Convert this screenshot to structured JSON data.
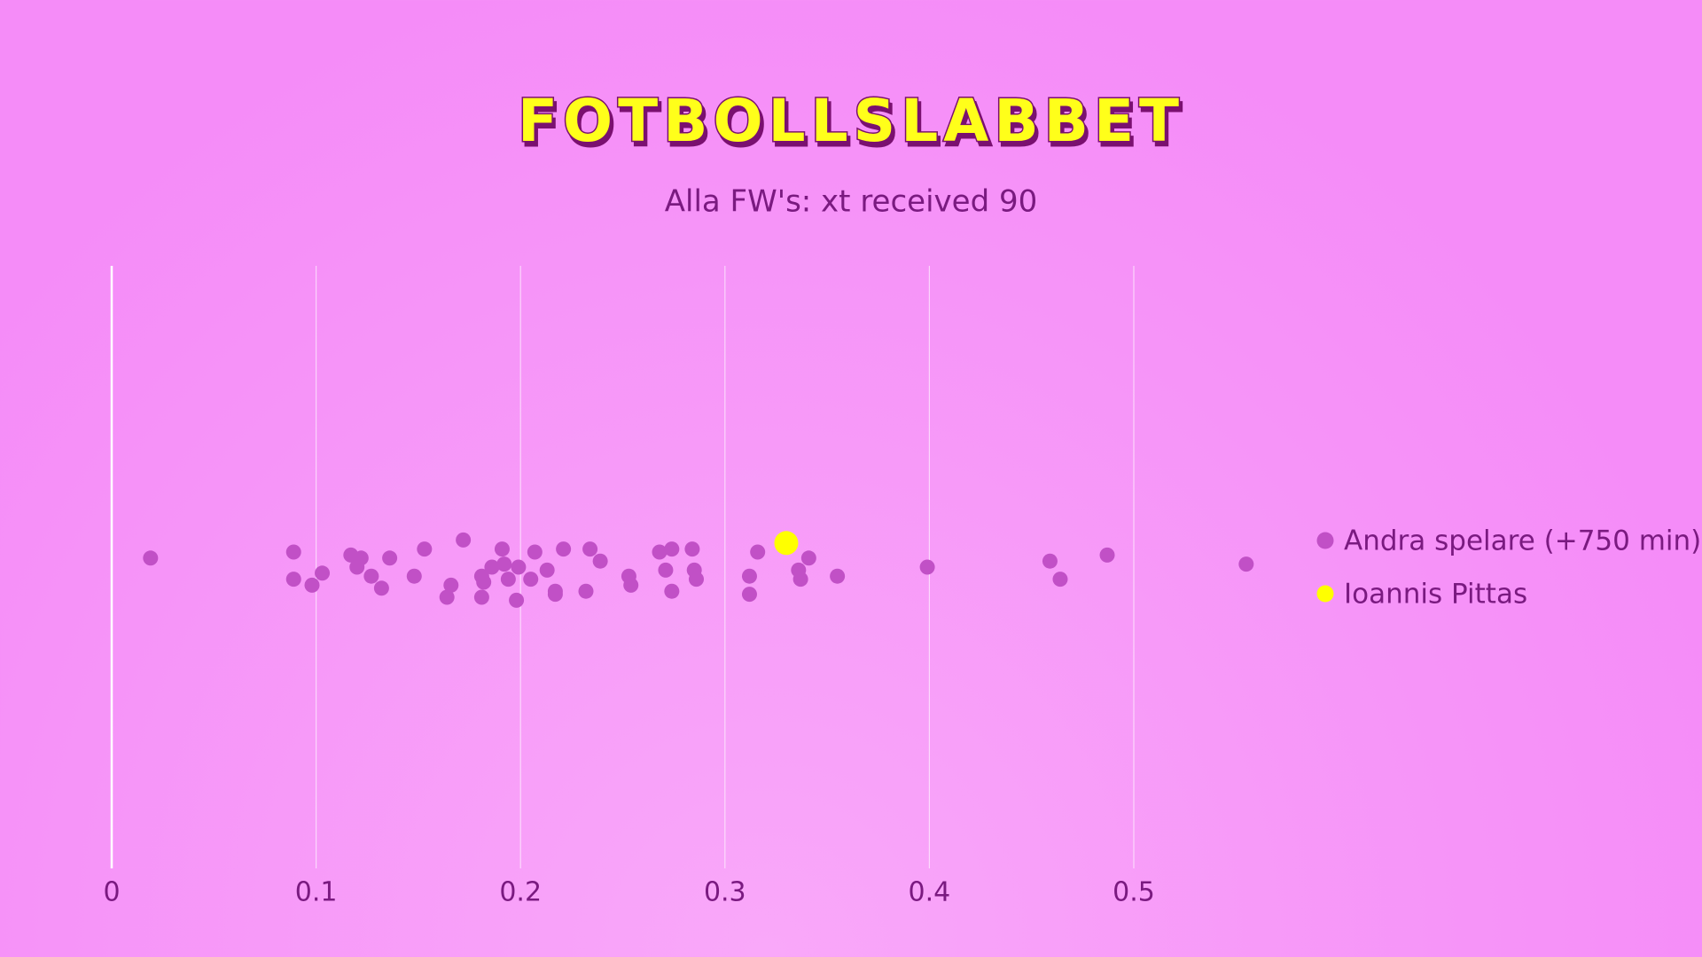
{
  "chart_data": {
    "type": "scatter",
    "title": "FOTBOLLSLABBET",
    "subtitle": "Alla FW's: xt received 90",
    "xlim": [
      0,
      0.6
    ],
    "xticks": [
      0,
      0.1,
      0.2,
      0.3,
      0.4,
      0.5
    ],
    "ylim": [
      -1,
      1
    ],
    "grid": true,
    "legend": "right",
    "series": [
      {
        "name": "Andra spelare (+750 min)",
        "color": "#c150c6",
        "x": [
          0.019,
          0.089,
          0.089,
          0.098,
          0.103,
          0.117,
          0.122,
          0.12,
          0.127,
          0.132,
          0.136,
          0.148,
          0.153,
          0.164,
          0.166,
          0.172,
          0.181,
          0.182,
          0.181,
          0.186,
          0.191,
          0.192,
          0.194,
          0.199,
          0.198,
          0.205,
          0.207,
          0.213,
          0.217,
          0.217,
          0.221,
          0.232,
          0.234,
          0.239,
          0.253,
          0.254,
          0.268,
          0.271,
          0.274,
          0.274,
          0.284,
          0.285,
          0.286,
          0.312,
          0.312,
          0.316,
          0.336,
          0.337,
          0.341,
          0.355,
          0.399,
          0.459,
          0.464,
          0.487,
          0.555
        ],
        "values": [
          0.03,
          0.05,
          -0.04,
          -0.06,
          -0.02,
          0.04,
          0.03,
          0.0,
          -0.03,
          -0.07,
          0.03,
          -0.03,
          0.06,
          -0.1,
          -0.06,
          0.09,
          -0.03,
          -0.05,
          -0.1,
          0.0,
          0.06,
          0.01,
          -0.04,
          0.0,
          -0.11,
          -0.04,
          0.05,
          -0.01,
          -0.08,
          -0.09,
          0.06,
          -0.08,
          0.06,
          0.02,
          -0.03,
          -0.06,
          0.05,
          -0.01,
          0.06,
          -0.08,
          0.06,
          -0.01,
          -0.04,
          -0.09,
          -0.03,
          0.05,
          -0.01,
          -0.04,
          0.03,
          -0.03,
          0.0,
          0.02,
          -0.04,
          0.04,
          0.01
        ]
      },
      {
        "name": "Ioannis Pittas",
        "color": "#ffff00",
        "x": [
          0.33
        ],
        "values": [
          0.08
        ]
      }
    ]
  }
}
